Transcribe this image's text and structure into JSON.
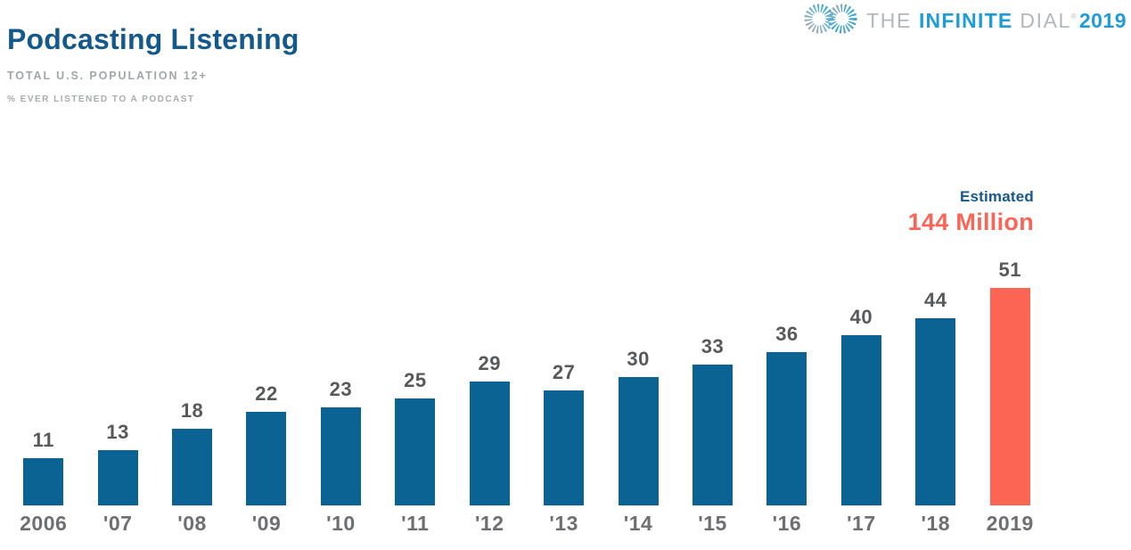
{
  "header": {
    "title": "Podcasting Listening",
    "subtitle": "TOTAL U.S. POPULATION 12+",
    "measure_note": "% EVER LISTENED TO A PODCAST"
  },
  "logo": {
    "icon": "infinity-waveform-icon",
    "word_the": "THE",
    "word_infinite": "INFINITE",
    "word_dial": "DIAL",
    "registered_mark": "®",
    "year": "2019",
    "brand_blue": "#1E9CD7",
    "brand_gray": "#B4B7BA"
  },
  "annotation": {
    "label": "Estimated",
    "value": "144 Million"
  },
  "colors": {
    "title_blue": "#14598C",
    "bar_blue": "#0B6394",
    "highlight_coral": "#FC6454",
    "value_label_gray": "#58595B",
    "axis_label_gray": "#6E6F72"
  },
  "chart_data": {
    "type": "bar",
    "title": "Podcasting Listening",
    "subtitle": "Total U.S. Population 12+",
    "ylabel": "% ever listened to a podcast",
    "xlabel": "",
    "categories": [
      "2006",
      "'07",
      "'08",
      "'09",
      "'10",
      "'11",
      "'12",
      "'13",
      "'14",
      "'15",
      "'16",
      "'17",
      "'18",
      "2019"
    ],
    "values": [
      11,
      13,
      18,
      22,
      23,
      25,
      29,
      27,
      30,
      33,
      36,
      40,
      44,
      51
    ],
    "ylim": [
      0,
      51
    ],
    "bar_colors": {
      "default": "#0B6394",
      "highlight": "#FC6454"
    },
    "highlight_index": 13,
    "highlight_note": "Estimated 144 Million",
    "value_labels_shown": true,
    "gridlines": false,
    "axes_hidden": true,
    "legend": "none"
  }
}
